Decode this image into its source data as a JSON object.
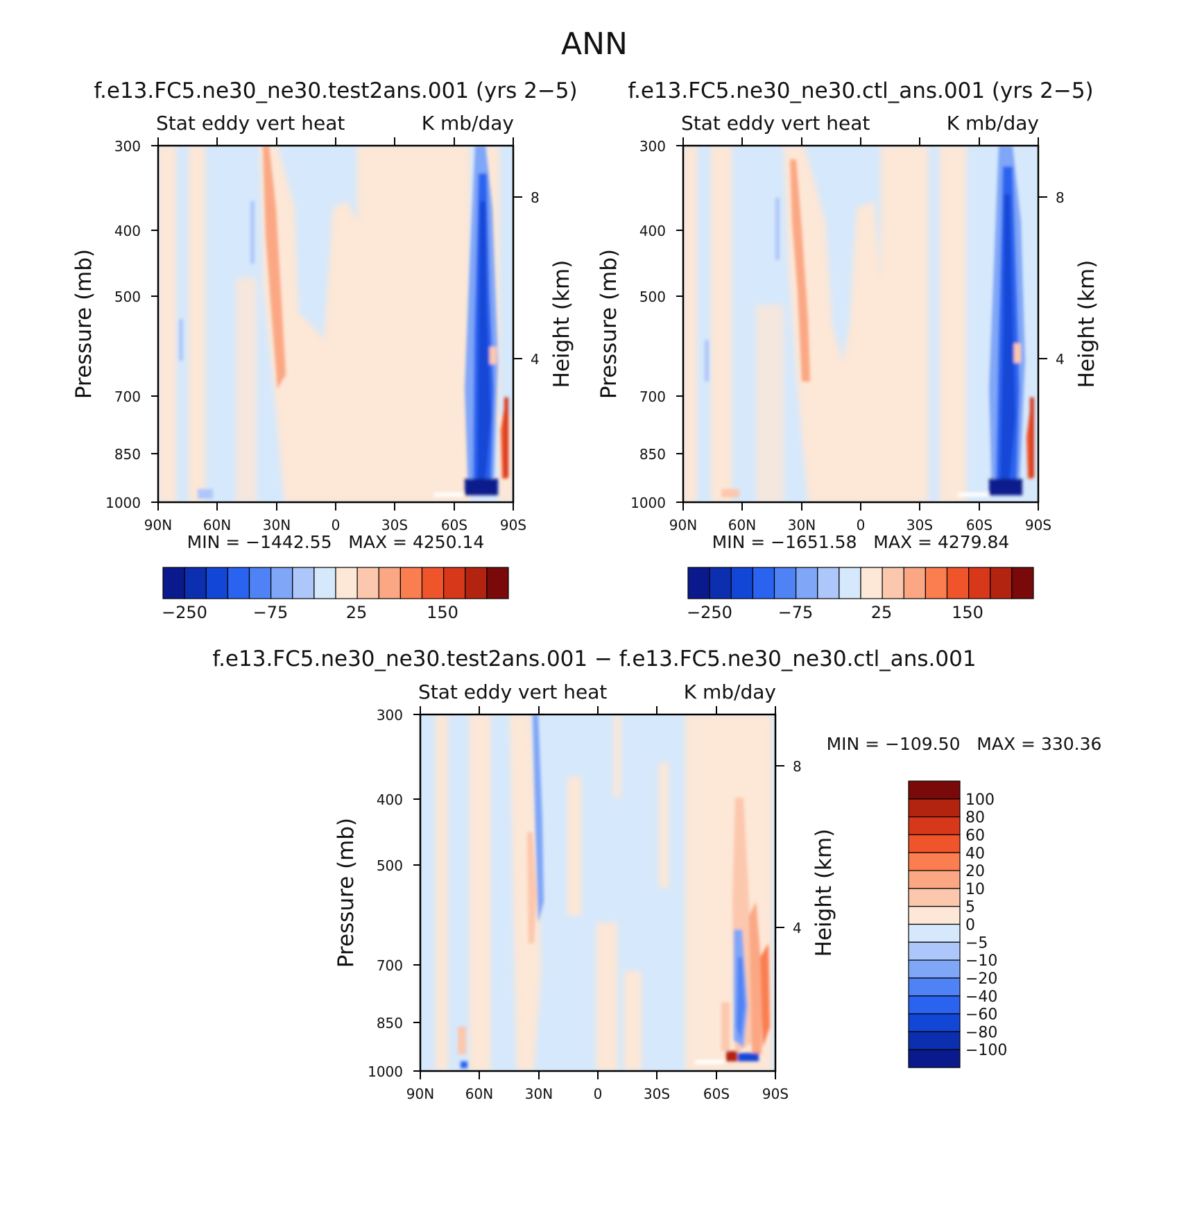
{
  "title": "ANN",
  "panels": [
    {
      "id": "test",
      "case_title": "f.e13.FC5.ne30_ne30.test2ans.001 (yrs 2−5)",
      "left_label": "Stat eddy vert heat",
      "right_label": "K mb/day",
      "ylabel": "Pressure (mb)",
      "ylabel_right": "Height (km)",
      "min_max": "MIN = −1442.55   MAX = 4250.14"
    },
    {
      "id": "ctl",
      "case_title": "f.e13.FC5.ne30_ne30.ctl_ans.001 (yrs 2−5)",
      "left_label": "Stat eddy vert heat",
      "right_label": "K mb/day",
      "ylabel": "Pressure (mb)",
      "ylabel_right": "Height (km)",
      "min_max": "MIN = −1651.58   MAX = 4279.84"
    },
    {
      "id": "diff",
      "case_title": "f.e13.FC5.ne30_ne30.test2ans.001 − f.e13.FC5.ne30_ne30.ctl_ans.001",
      "left_label": "Stat eddy vert heat",
      "right_label": "K mb/day",
      "ylabel": "Pressure (mb)",
      "ylabel_right": "Height (km)",
      "min_max": "MIN = −109.50   MAX = 330.36"
    }
  ],
  "axes": {
    "pressure_ticks": [
      "300",
      "400",
      "500",
      "700",
      "850",
      "1000"
    ],
    "height_ticks": [
      "8",
      "4"
    ],
    "lat_ticks": [
      "90N",
      "60N",
      "30N",
      "0",
      "30S",
      "60S",
      "90S"
    ]
  },
  "colorbar_abs": {
    "colors": [
      "#0a1a8c",
      "#0c2fb0",
      "#1246d6",
      "#2a63f0",
      "#4f82f5",
      "#7fa6f7",
      "#adc7fa",
      "#d6e8fb",
      "#fde7d6",
      "#fcc8ad",
      "#fba784",
      "#fa7e4f",
      "#f0542b",
      "#d8381a",
      "#b32410",
      "#7a0a0a"
    ],
    "labels": [
      "−250",
      "−75",
      "25",
      "150"
    ]
  },
  "colorbar_diff": {
    "colors": [
      "#7a0a0a",
      "#b32410",
      "#d8381a",
      "#f0542b",
      "#fa7e4f",
      "#fba784",
      "#fcc8ad",
      "#fde7d6",
      "#d6e8fb",
      "#adc7fa",
      "#7fa6f7",
      "#4f82f5",
      "#2a63f0",
      "#1246d6",
      "#0c2fb0",
      "#0a1a8c"
    ],
    "labels": [
      "100",
      "80",
      "60",
      "40",
      "20",
      "10",
      "5",
      "0",
      "−5",
      "−10",
      "−20",
      "−40",
      "−60",
      "−80",
      "−100"
    ]
  },
  "chart_data": [
    {
      "type": "heatmap",
      "title": "f.e13.FC5.ne30_ne30.test2ans.001 (yrs 2−5)",
      "xlabel": "",
      "ylabel": "Pressure (mb)",
      "x_range": [
        "90N",
        "90S"
      ],
      "y_range_mb": [
        1000,
        300
      ],
      "y_scale": "log-pressure",
      "units": "K mb/day",
      "min": -1442.55,
      "max": 4250.14,
      "features": [
        {
          "lat": "≈30N",
          "level_mb": "300–750",
          "sign": "positive",
          "approx_value": 25
        },
        {
          "lat": "≈70S–85S",
          "level_mb": "300–1000",
          "sign": "negative",
          "approx_value": -250
        },
        {
          "lat": "≈85S",
          "level_mb": "700–950",
          "sign": "positive",
          "approx_value": 150
        }
      ]
    },
    {
      "type": "heatmap",
      "title": "f.e13.FC5.ne30_ne30.ctl_ans.001 (yrs 2−5)",
      "xlabel": "",
      "ylabel": "Pressure (mb)",
      "x_range": [
        "90N",
        "90S"
      ],
      "y_range_mb": [
        1000,
        300
      ],
      "y_scale": "log-pressure",
      "units": "K mb/day",
      "min": -1651.58,
      "max": 4279.84,
      "features": [
        {
          "lat": "≈30N",
          "level_mb": "320–750",
          "sign": "positive",
          "approx_value": 25
        },
        {
          "lat": "≈70S–85S",
          "level_mb": "300–1000",
          "sign": "negative",
          "approx_value": -250
        },
        {
          "lat": "≈85S",
          "level_mb": "700–950",
          "sign": "positive",
          "approx_value": 150
        }
      ]
    },
    {
      "type": "heatmap",
      "title": "f.e13.FC5.ne30_ne30.test2ans.001 − f.e13.FC5.ne30_ne30.ctl_ans.001",
      "xlabel": "",
      "ylabel": "Pressure (mb)",
      "x_range": [
        "90N",
        "90S"
      ],
      "y_range_mb": [
        1000,
        300
      ],
      "y_scale": "log-pressure",
      "units": "K mb/day",
      "min": -109.5,
      "max": 330.36,
      "features": [
        {
          "lat": "≈30N",
          "level_mb": "300–700",
          "sign": "negative",
          "approx_value": -10
        },
        {
          "lat": "≈60S–80S",
          "level_mb": "600–1000",
          "sign": "mixed",
          "approx_value": 20
        },
        {
          "lat": "≈70S",
          "level_mb": "1000",
          "sign": "positive",
          "approx_value": 100
        }
      ]
    }
  ]
}
